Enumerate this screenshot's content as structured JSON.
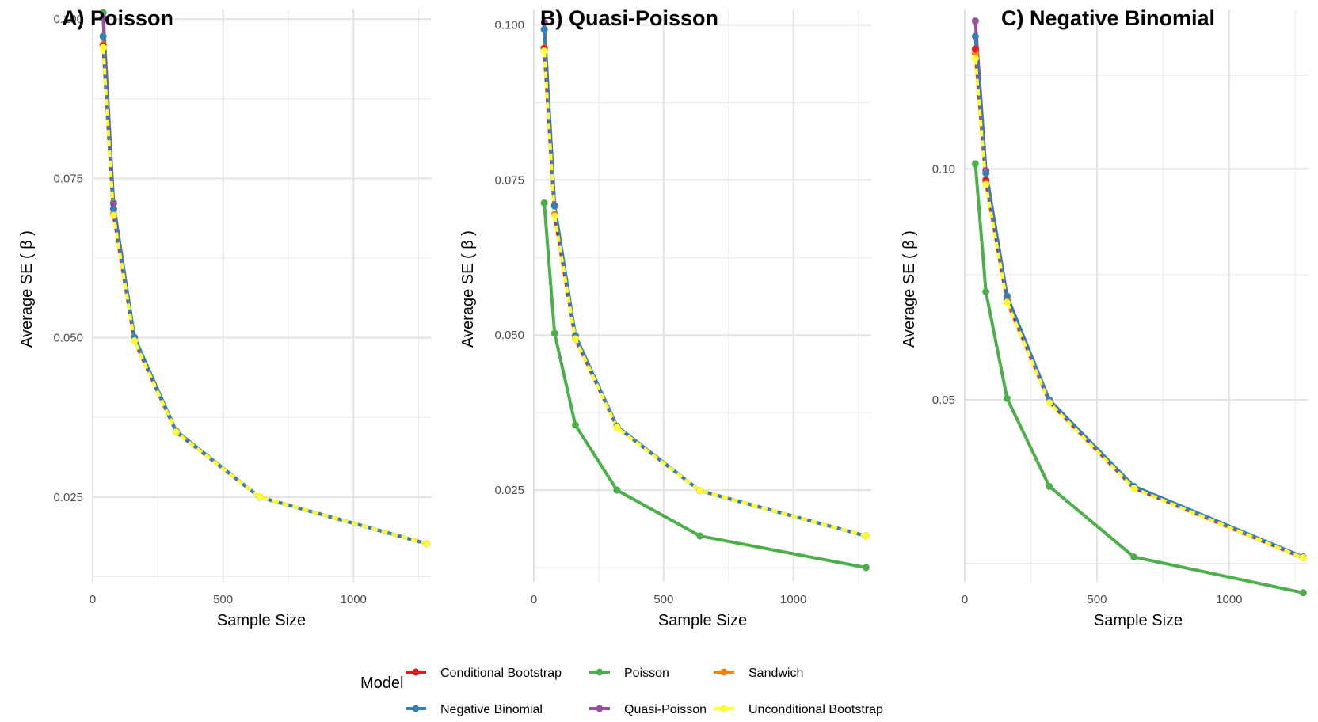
{
  "chart_data": [
    {
      "type": "line",
      "title": "A) Poisson",
      "xlabel": "Sample Size",
      "ylabel": "Average SE ( β )",
      "xlim": [
        0,
        1300
      ],
      "ylim": [
        0.0117,
        0.1015
      ],
      "x_ticks": [
        0,
        500,
        1000
      ],
      "y_ticks": [
        0.025,
        0.05,
        0.075,
        0.1
      ],
      "y_tick_labels": [
        "0.025",
        "0.050",
        "0.075",
        "0.100"
      ],
      "x": [
        40,
        80,
        160,
        320,
        640,
        1280
      ],
      "series": [
        {
          "name": "Conditional Bootstrap",
          "values": [
            0.0958,
            0.0693,
            0.0495,
            0.0352,
            0.025,
            0.0177
          ]
        },
        {
          "name": "Negative Binomial",
          "values": [
            0.0973,
            0.0702,
            0.05,
            0.0353,
            0.025,
            0.0177
          ]
        },
        {
          "name": "Poisson",
          "values": [
            0.101,
            0.0712,
            0.0501,
            0.0354,
            0.025,
            0.0177
          ]
        },
        {
          "name": "Quasi-Poisson",
          "values": [
            0.1002,
            0.071,
            0.0499,
            0.0353,
            0.025,
            0.0177
          ]
        },
        {
          "name": "Sandwich",
          "values": [
            0.096,
            0.0694,
            0.0496,
            0.0352,
            0.025,
            0.0177
          ]
        },
        {
          "name": "Unconditional Bootstrap",
          "values": [
            0.0955,
            0.0692,
            0.0495,
            0.0352,
            0.025,
            0.0177
          ]
        }
      ]
    },
    {
      "type": "line",
      "title": "B) Quasi-Poisson",
      "xlabel": "Sample Size",
      "ylabel": "Average SE ( β )",
      "xlim": [
        0,
        1300
      ],
      "ylim": [
        0.0102,
        0.1025
      ],
      "x_ticks": [
        0,
        500,
        1000
      ],
      "y_ticks": [
        0.025,
        0.05,
        0.075,
        0.1
      ],
      "y_tick_labels": [
        "0.025",
        "0.050",
        "0.075",
        "0.100"
      ],
      "x": [
        40,
        80,
        160,
        320,
        640,
        1280
      ],
      "series": [
        {
          "name": "Conditional Bootstrap",
          "values": [
            0.0962,
            0.0693,
            0.0494,
            0.0352,
            0.0249,
            0.0176
          ]
        },
        {
          "name": "Negative Binomial",
          "values": [
            0.0993,
            0.0708,
            0.0499,
            0.0353,
            0.0249,
            0.0176
          ]
        },
        {
          "name": "Poisson",
          "values": [
            0.0713,
            0.0503,
            0.0355,
            0.025,
            0.0176,
            0.0125
          ]
        },
        {
          "name": "Quasi-Poisson",
          "values": [
            0.1004,
            0.0709,
            0.0499,
            0.0353,
            0.0249,
            0.0176
          ]
        },
        {
          "name": "Sandwich",
          "values": [
            0.0963,
            0.0694,
            0.0494,
            0.0352,
            0.0249,
            0.0176
          ]
        },
        {
          "name": "Unconditional Bootstrap",
          "values": [
            0.0958,
            0.0692,
            0.0494,
            0.0351,
            0.0249,
            0.0176
          ]
        }
      ]
    },
    {
      "type": "line",
      "title": "C) Negative Binomial",
      "xlabel": "Sample Size",
      "ylabel": "Average SE ( β )",
      "xlim": [
        0,
        1300
      ],
      "ylim": [
        0.0,
        1.0
      ],
      "y_scale": "sqrt",
      "y_domain": [
        0.0227,
        0.1445
      ],
      "x_ticks": [
        0,
        500,
        1000
      ],
      "y_ticks": [
        0.05,
        0.1
      ],
      "y_tick_labels": [
        "0.05",
        "0.10"
      ],
      "x": [
        40,
        80,
        160,
        320,
        640,
        1280
      ],
      "series": [
        {
          "name": "Conditional Bootstrap",
          "values": [
            0.1327,
            0.0972,
            0.0694,
            0.0497,
            0.0355,
            0.0257
          ]
        },
        {
          "name": "Negative Binomial",
          "values": [
            0.1364,
            0.0989,
            0.0703,
            0.05,
            0.0357,
            0.0258
          ]
        },
        {
          "name": "Poisson",
          "values": [
            0.1013,
            0.0713,
            0.0503,
            0.0357,
            0.0258,
            0.0214
          ]
        },
        {
          "name": "Quasi-Poisson",
          "values": [
            0.141,
            0.0996,
            0.0704,
            0.05,
            0.0356,
            0.0258
          ]
        },
        {
          "name": "Sandwich",
          "values": [
            0.1314,
            0.0965,
            0.0692,
            0.0496,
            0.0354,
            0.0257
          ]
        },
        {
          "name": "Unconditional Bootstrap",
          "values": [
            0.13,
            0.0961,
            0.069,
            0.0495,
            0.0354,
            0.0257
          ]
        }
      ]
    }
  ],
  "legend": {
    "title": "Model",
    "entries": [
      {
        "name": "Conditional Bootstrap",
        "color": "#e41a1c"
      },
      {
        "name": "Poisson",
        "color": "#4daf4a"
      },
      {
        "name": "Sandwich",
        "color": "#ff7f00"
      },
      {
        "name": "Negative Binomial",
        "color": "#377eb8"
      },
      {
        "name": "Quasi-Poisson",
        "color": "#984ea3"
      },
      {
        "name": "Unconditional Bootstrap",
        "color": "#ffff33"
      }
    ]
  },
  "colors": {
    "Conditional Bootstrap": "#e41a1c",
    "Negative Binomial": "#377eb8",
    "Poisson": "#4daf4a",
    "Quasi-Poisson": "#984ea3",
    "Sandwich": "#ff7f00",
    "Unconditional Bootstrap": "#ffff33"
  }
}
